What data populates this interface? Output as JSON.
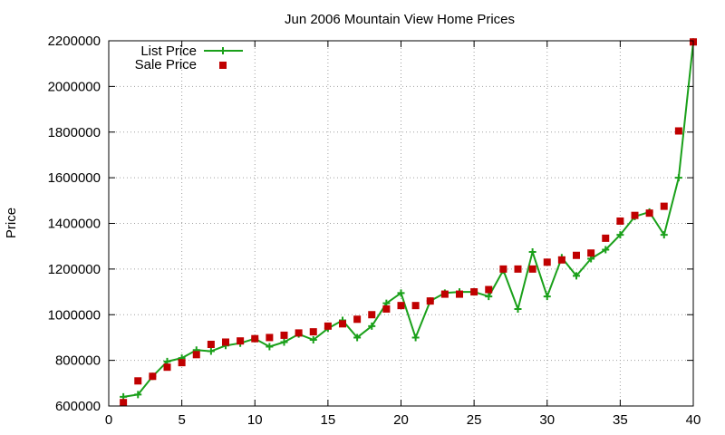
{
  "chart_data": {
    "type": "line",
    "title": "Jun 2006 Mountain View Home Prices",
    "xlabel": "",
    "ylabel": "Price",
    "xlim": [
      0,
      40
    ],
    "ylim": [
      600000,
      2200000
    ],
    "xticks": [
      0,
      5,
      10,
      15,
      20,
      25,
      30,
      35,
      40
    ],
    "yticks": [
      600000,
      800000,
      1000000,
      1200000,
      1400000,
      1600000,
      1800000,
      2000000,
      2200000
    ],
    "grid": true,
    "legend_position": "top-left",
    "series": [
      {
        "name": "List Price",
        "style": "line-with-plus-markers",
        "color": "#1aa01a",
        "x": [
          1,
          2,
          3,
          4,
          5,
          6,
          7,
          8,
          9,
          10,
          11,
          12,
          13,
          14,
          15,
          16,
          17,
          18,
          19,
          20,
          21,
          22,
          23,
          24,
          25,
          26,
          27,
          28,
          29,
          30,
          31,
          32,
          33,
          34,
          35,
          36,
          37,
          38,
          39,
          40
        ],
        "values": [
          640000,
          650000,
          730000,
          795000,
          810000,
          845000,
          840000,
          865000,
          875000,
          895000,
          860000,
          880000,
          915000,
          890000,
          940000,
          975000,
          900000,
          950000,
          1050000,
          1095000,
          900000,
          1060000,
          1095000,
          1100000,
          1100000,
          1080000,
          1195000,
          1025000,
          1275000,
          1080000,
          1250000,
          1170000,
          1245000,
          1285000,
          1350000,
          1430000,
          1450000,
          1350000,
          1600000,
          2195000
        ]
      },
      {
        "name": "Sale Price",
        "style": "square-markers",
        "color": "#c00000",
        "x": [
          1,
          2,
          3,
          4,
          5,
          6,
          7,
          8,
          9,
          10,
          11,
          12,
          13,
          14,
          15,
          16,
          17,
          18,
          19,
          20,
          21,
          22,
          23,
          24,
          25,
          26,
          27,
          28,
          29,
          30,
          31,
          32,
          33,
          34,
          35,
          36,
          37,
          38,
          39,
          40
        ],
        "values": [
          615000,
          710000,
          730000,
          770000,
          790000,
          825000,
          870000,
          880000,
          885000,
          895000,
          900000,
          910000,
          920000,
          925000,
          950000,
          960000,
          980000,
          1000000,
          1025000,
          1040000,
          1040000,
          1060000,
          1090000,
          1090000,
          1100000,
          1110000,
          1200000,
          1200000,
          1200000,
          1230000,
          1240000,
          1260000,
          1270000,
          1335000,
          1410000,
          1435000,
          1445000,
          1475000,
          1805000,
          2195000
        ]
      }
    ]
  }
}
